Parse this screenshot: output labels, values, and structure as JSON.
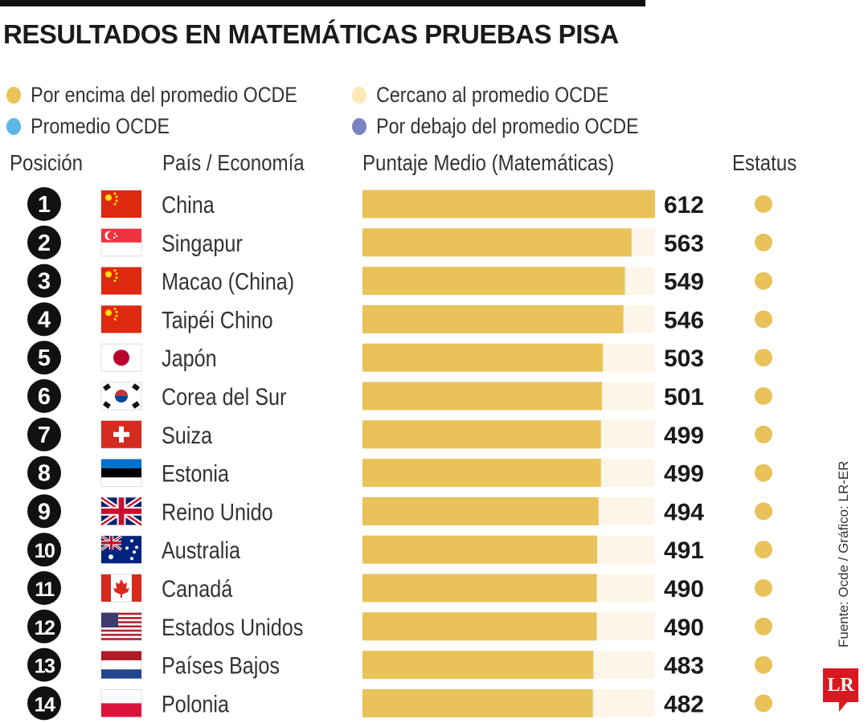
{
  "title": "RESULTADOS EN MATEMÁTICAS PRUEBAS PISA",
  "legend": [
    {
      "label": "Por encima del promedio OCDE",
      "color": "#e9c25a"
    },
    {
      "label": "Cercano al promedio OCDE",
      "color": "#fde9b6"
    },
    {
      "label": "Promedio OCDE",
      "color": "#5cb8e6"
    },
    {
      "label": "Por debajo del promedio OCDE",
      "color": "#7b83c3"
    }
  ],
  "columns": {
    "position": "Posición",
    "country": "País / Economía",
    "score": "Puntaje Medio (Matemáticas)",
    "status": "Estatus"
  },
  "credit": "Fuente: Ocde / Gráfico: LR-ER",
  "logo": "LR",
  "chart_data": {
    "type": "bar",
    "orientation": "horizontal",
    "xlim": [
      0,
      612
    ],
    "bar_color": "#e9c25a",
    "track_color": "#fdf6e8",
    "rows": [
      {
        "rank": "1",
        "country": "China",
        "flag": "china",
        "value": 612,
        "status": "Por encima del promedio OCDE"
      },
      {
        "rank": "2",
        "country": "Singapur",
        "flag": "singapore",
        "value": 563,
        "status": "Por encima del promedio OCDE"
      },
      {
        "rank": "3",
        "country": "Macao (China)",
        "flag": "china",
        "value": 549,
        "status": "Por encima del promedio OCDE"
      },
      {
        "rank": "4",
        "country": "Taipéi Chino",
        "flag": "china",
        "value": 546,
        "status": "Por encima del promedio OCDE"
      },
      {
        "rank": "5",
        "country": "Japón",
        "flag": "japan",
        "value": 503,
        "status": "Por encima del promedio OCDE"
      },
      {
        "rank": "6",
        "country": "Corea del Sur",
        "flag": "korea",
        "value": 501,
        "status": "Por encima del promedio OCDE"
      },
      {
        "rank": "7",
        "country": "Suiza",
        "flag": "switzerland",
        "value": 499,
        "status": "Por encima del promedio OCDE"
      },
      {
        "rank": "8",
        "country": "Estonia",
        "flag": "estonia",
        "value": 499,
        "status": "Por encima del promedio OCDE"
      },
      {
        "rank": "9",
        "country": "Reino Unido",
        "flag": "uk",
        "value": 494,
        "status": "Por encima del promedio OCDE"
      },
      {
        "rank": "10",
        "country": "Australia",
        "flag": "australia",
        "value": 491,
        "status": "Por encima del promedio OCDE"
      },
      {
        "rank": "11",
        "country": "Canadá",
        "flag": "canada",
        "value": 490,
        "status": "Por encima del promedio OCDE"
      },
      {
        "rank": "12",
        "country": "Estados Unidos",
        "flag": "usa",
        "value": 490,
        "status": "Por encima del promedio OCDE"
      },
      {
        "rank": "13",
        "country": "Países Bajos",
        "flag": "netherlands",
        "value": 483,
        "status": "Por encima del promedio OCDE"
      },
      {
        "rank": "14",
        "country": "Polonia",
        "flag": "poland",
        "value": 482,
        "status": "Por encima del promedio OCDE"
      }
    ]
  }
}
